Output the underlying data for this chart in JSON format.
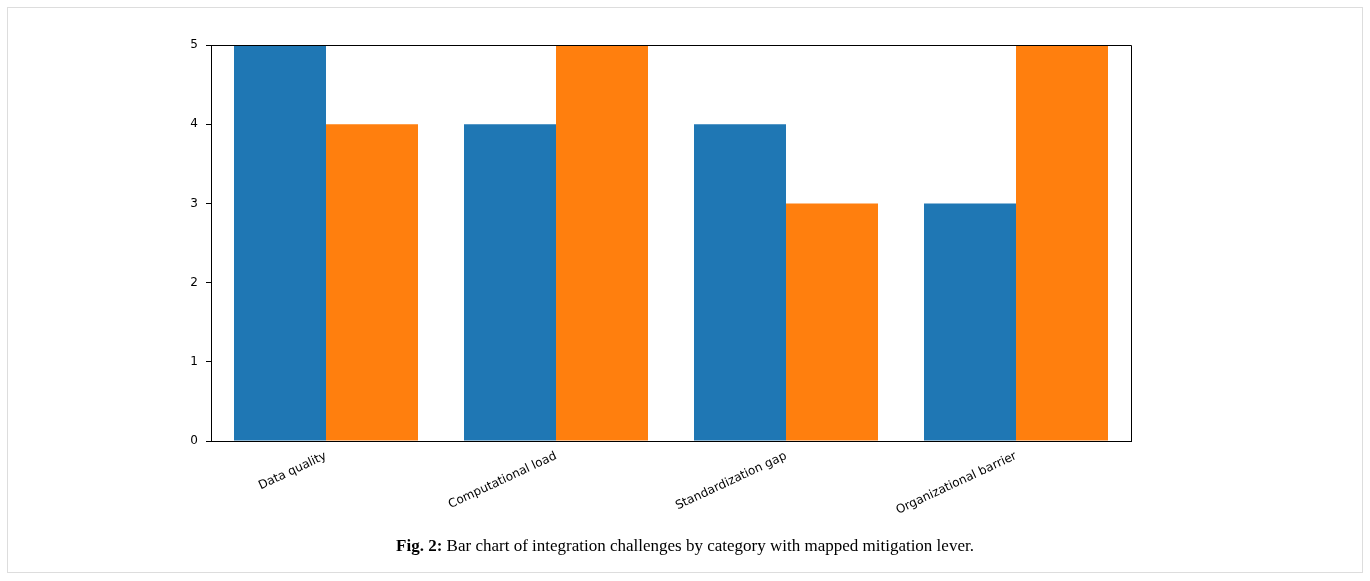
{
  "chart_data": {
    "type": "bar",
    "categories": [
      "Data quality",
      "Computational load",
      "Standardization gap",
      "Organizational barrier"
    ],
    "series": [
      {
        "color": "#1f77b4",
        "values": [
          5,
          4,
          4,
          3
        ]
      },
      {
        "color": "#ff7f0e",
        "values": [
          4,
          5,
          3,
          5
        ]
      }
    ],
    "ylim": [
      0,
      5
    ],
    "yticks": [
      0,
      1,
      2,
      3,
      4,
      5
    ],
    "grid": false,
    "legend": false,
    "annotations": [
      "Fig. 2: Bar chart of integration challenges by category with mapped mitigation lever."
    ]
  }
}
